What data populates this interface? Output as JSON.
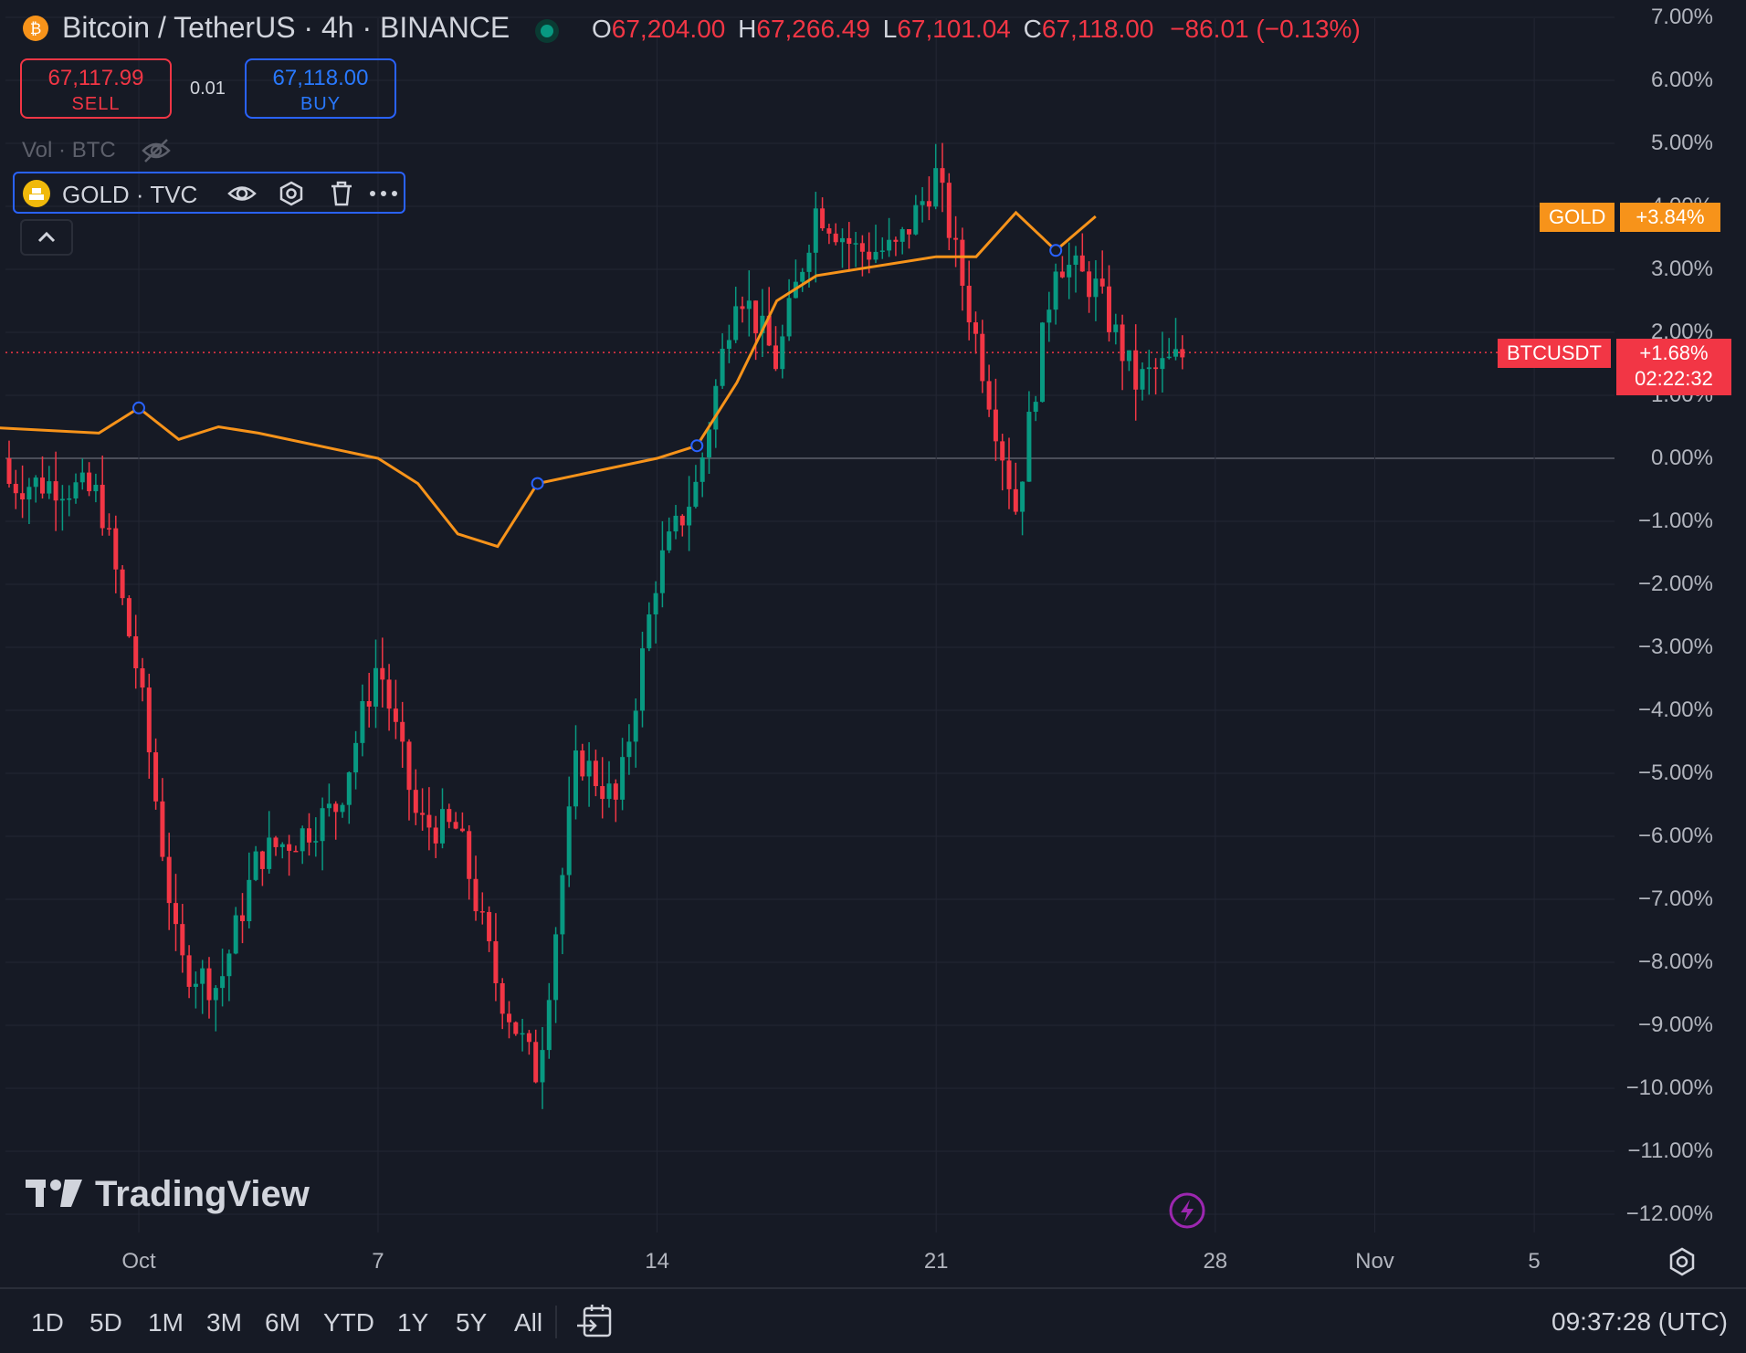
{
  "header": {
    "symbol_title": "Bitcoin / TetherUS · 4h · BINANCE",
    "open_key": "O",
    "open": "67,204.00",
    "high_key": "H",
    "high": "67,266.49",
    "low_key": "L",
    "low": "67,101.04",
    "close_key": "C",
    "close": "67,118.00",
    "change": "−86.01 (−0.13%)",
    "status_color": "#089981"
  },
  "trade": {
    "sell_price": "67,117.99",
    "sell_label": "SELL",
    "spread": "0.01",
    "buy_price": "67,118.00",
    "buy_label": "BUY"
  },
  "volume_label": "Vol · BTC",
  "compare": {
    "label": "GOLD · TVC"
  },
  "price_scale": {
    "ticks": [
      "7.00%",
      "6.00%",
      "5.00%",
      "4.00%",
      "3.00%",
      "2.00%",
      "1.00%",
      "0.00%",
      "−1.00%",
      "−2.00%",
      "−3.00%",
      "−4.00%",
      "−5.00%",
      "−6.00%",
      "−7.00%",
      "−8.00%",
      "−9.00%",
      "−10.00%",
      "−11.00%",
      "−12.00%"
    ],
    "gold_tag_name": "GOLD",
    "gold_tag_value": "+3.84%",
    "btc_tag_name": "BTCUSDT",
    "btc_tag_value": "+1.68%",
    "btc_tag_countdown": "02:22:32"
  },
  "time_scale": {
    "ticks": [
      "Oct",
      "7",
      "14",
      "21",
      "28",
      "Nov",
      "5"
    ]
  },
  "watermark": "TradingView",
  "ranges": [
    "1D",
    "5D",
    "1M",
    "3M",
    "6M",
    "YTD",
    "1Y",
    "5Y",
    "All"
  ],
  "clock": "09:37:28 (UTC)",
  "colors": {
    "up": "#089981",
    "down": "#f23645",
    "gold_line": "#f7931a",
    "accent": "#2962ff",
    "background": "#161a25"
  },
  "chart_data": {
    "type": "line",
    "y_unit": "% change",
    "ylim": [
      -12.3,
      7.2
    ],
    "x_ticks": [
      "Oct",
      "7",
      "14",
      "21",
      "28",
      "Nov",
      "5"
    ],
    "series": [
      {
        "name": "BTCUSDT",
        "style": "candlestick",
        "x": [
          "Sep 29",
          "Sep 30",
          "Oct 1",
          "Oct 2",
          "Oct 3",
          "Oct 4",
          "Oct 5",
          "Oct 6",
          "Oct 7",
          "Oct 8",
          "Oct 9",
          "Oct 10",
          "Oct 11",
          "Oct 12",
          "Oct 13",
          "Oct 14",
          "Oct 15",
          "Oct 16",
          "Oct 17",
          "Oct 18",
          "Oct 19",
          "Oct 20",
          "Oct 21",
          "Oct 22",
          "Oct 23",
          "Oct 24",
          "Oct 25",
          "Oct 26",
          "Oct 27"
        ],
        "values": [
          -0.4,
          -0.6,
          -3.5,
          -8.0,
          -8.4,
          -6.3,
          -6.0,
          -5.5,
          -3.2,
          -5.8,
          -5.9,
          -8.4,
          -9.8,
          -4.7,
          -5.5,
          -1.8,
          -0.4,
          2.8,
          1.5,
          4.0,
          3.3,
          3.3,
          4.5,
          1.9,
          -0.8,
          3.2,
          2.7,
          1.2,
          1.68
        ]
      },
      {
        "name": "GOLD",
        "style": "line",
        "x": [
          "Sep 27",
          "Sep 30",
          "Oct 1",
          "Oct 2",
          "Oct 3",
          "Oct 4",
          "Oct 7",
          "Oct 8",
          "Oct 9",
          "Oct 10",
          "Oct 11",
          "Oct 14",
          "Oct 15",
          "Oct 16",
          "Oct 17",
          "Oct 18",
          "Oct 21",
          "Oct 22",
          "Oct 23",
          "Oct 24",
          "Oct 25"
        ],
        "values": [
          0.5,
          0.4,
          0.8,
          0.3,
          0.5,
          0.4,
          0.0,
          -0.4,
          -1.2,
          -1.4,
          -0.4,
          0.0,
          0.2,
          1.2,
          2.5,
          2.9,
          3.2,
          3.2,
          3.9,
          3.3,
          3.84
        ]
      }
    ]
  }
}
